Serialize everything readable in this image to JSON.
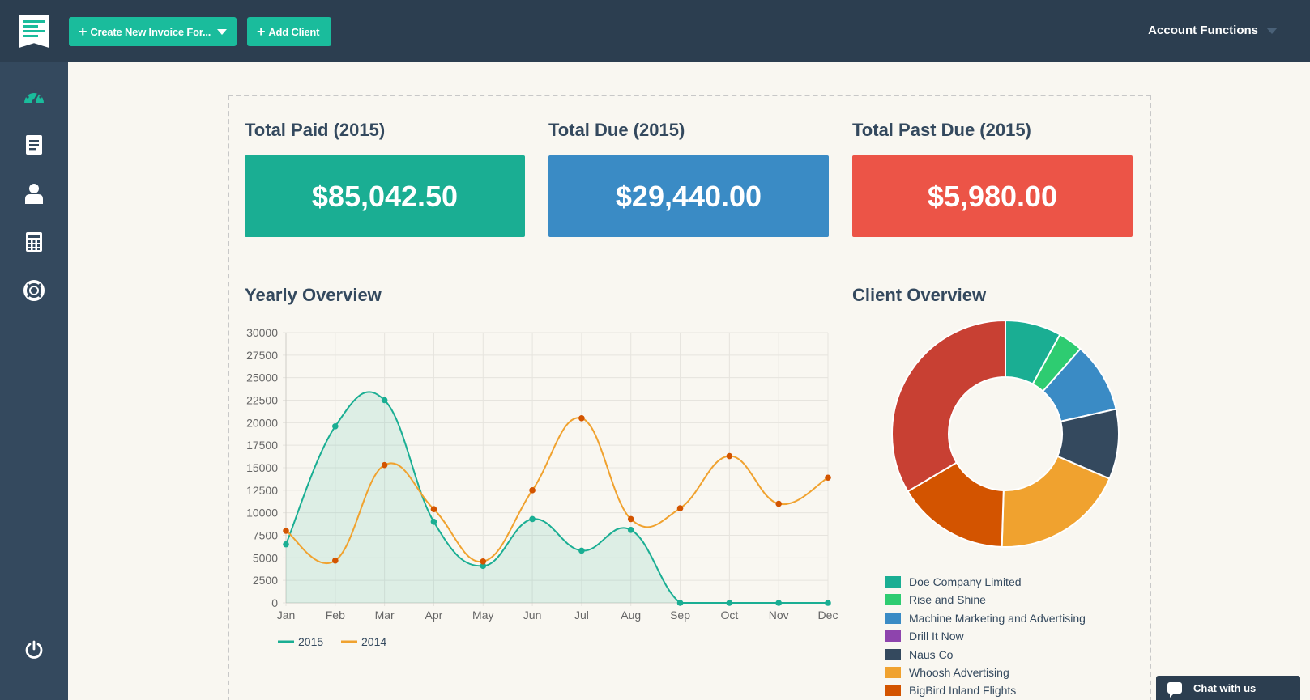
{
  "header": {
    "create_invoice_label": "Create New Invoice For...",
    "add_client_label": "Add Client",
    "account_label": "Account Functions"
  },
  "sidebar": {
    "items": [
      {
        "icon": "dashboard-icon",
        "active": true
      },
      {
        "icon": "invoice-icon",
        "active": false
      },
      {
        "icon": "clients-icon",
        "active": false
      },
      {
        "icon": "calculator-icon",
        "active": false
      },
      {
        "icon": "support-icon",
        "active": false
      },
      {
        "icon": "power-icon",
        "active": false
      }
    ]
  },
  "stats": [
    {
      "title": "Total Paid (2015)",
      "value": "$85,042.50",
      "color": "#1aae93"
    },
    {
      "title": "Total Due (2015)",
      "value": "$29,440.00",
      "color": "#3a8bc5"
    },
    {
      "title": "Total Past Due (2015)",
      "value": "$5,980.00",
      "color": "#ec5447"
    }
  ],
  "yearly": {
    "title": "Yearly Overview"
  },
  "clients": {
    "title": "Client Overview"
  },
  "chat": {
    "label": "Chat with us"
  },
  "chart_data": [
    {
      "type": "line",
      "x": [
        "Jan",
        "Feb",
        "Mar",
        "Apr",
        "May",
        "Jun",
        "Jul",
        "Aug",
        "Sep",
        "Oct",
        "Nov",
        "Dec"
      ],
      "ylim": [
        0,
        30000
      ],
      "yticks": [
        0,
        2500,
        5000,
        7500,
        10000,
        12500,
        15000,
        17500,
        20000,
        22500,
        25000,
        27500,
        30000
      ],
      "grid": true,
      "legend": "bottom-left",
      "series": [
        {
          "name": "2015",
          "color": "#1aae93",
          "fill": true,
          "values": [
            6500,
            19600,
            22500,
            9000,
            4100,
            9300,
            5800,
            8100,
            0,
            0,
            0,
            0
          ]
        },
        {
          "name": "2014",
          "color": "#f0a22f",
          "point_color": "#d35400",
          "fill": false,
          "values": [
            8000,
            4700,
            15300,
            10400,
            4600,
            12500,
            20500,
            9300,
            10500,
            16300,
            11000,
            13900
          ]
        }
      ]
    },
    {
      "type": "pie",
      "donut": true,
      "legend": "bottom",
      "slices": [
        {
          "label": "Doe Company Limited",
          "value": 8,
          "color": "#1aae93"
        },
        {
          "label": "Rise and Shine",
          "value": 3.5,
          "color": "#2ecc71"
        },
        {
          "label": "Machine Marketing and Advertising",
          "value": 10,
          "color": "#3a8bc5"
        },
        {
          "label": "Drill It Now",
          "value": 0,
          "color": "#8e44ad"
        },
        {
          "label": "Naus Co",
          "value": 10,
          "color": "#34495e"
        },
        {
          "label": "Whoosh Advertising",
          "value": 19,
          "color": "#f0a22f"
        },
        {
          "label": "BigBird Inland Flights",
          "value": 16,
          "color": "#d35400"
        },
        {
          "label": "",
          "value": 33.5,
          "color": "#c84033"
        }
      ]
    }
  ]
}
